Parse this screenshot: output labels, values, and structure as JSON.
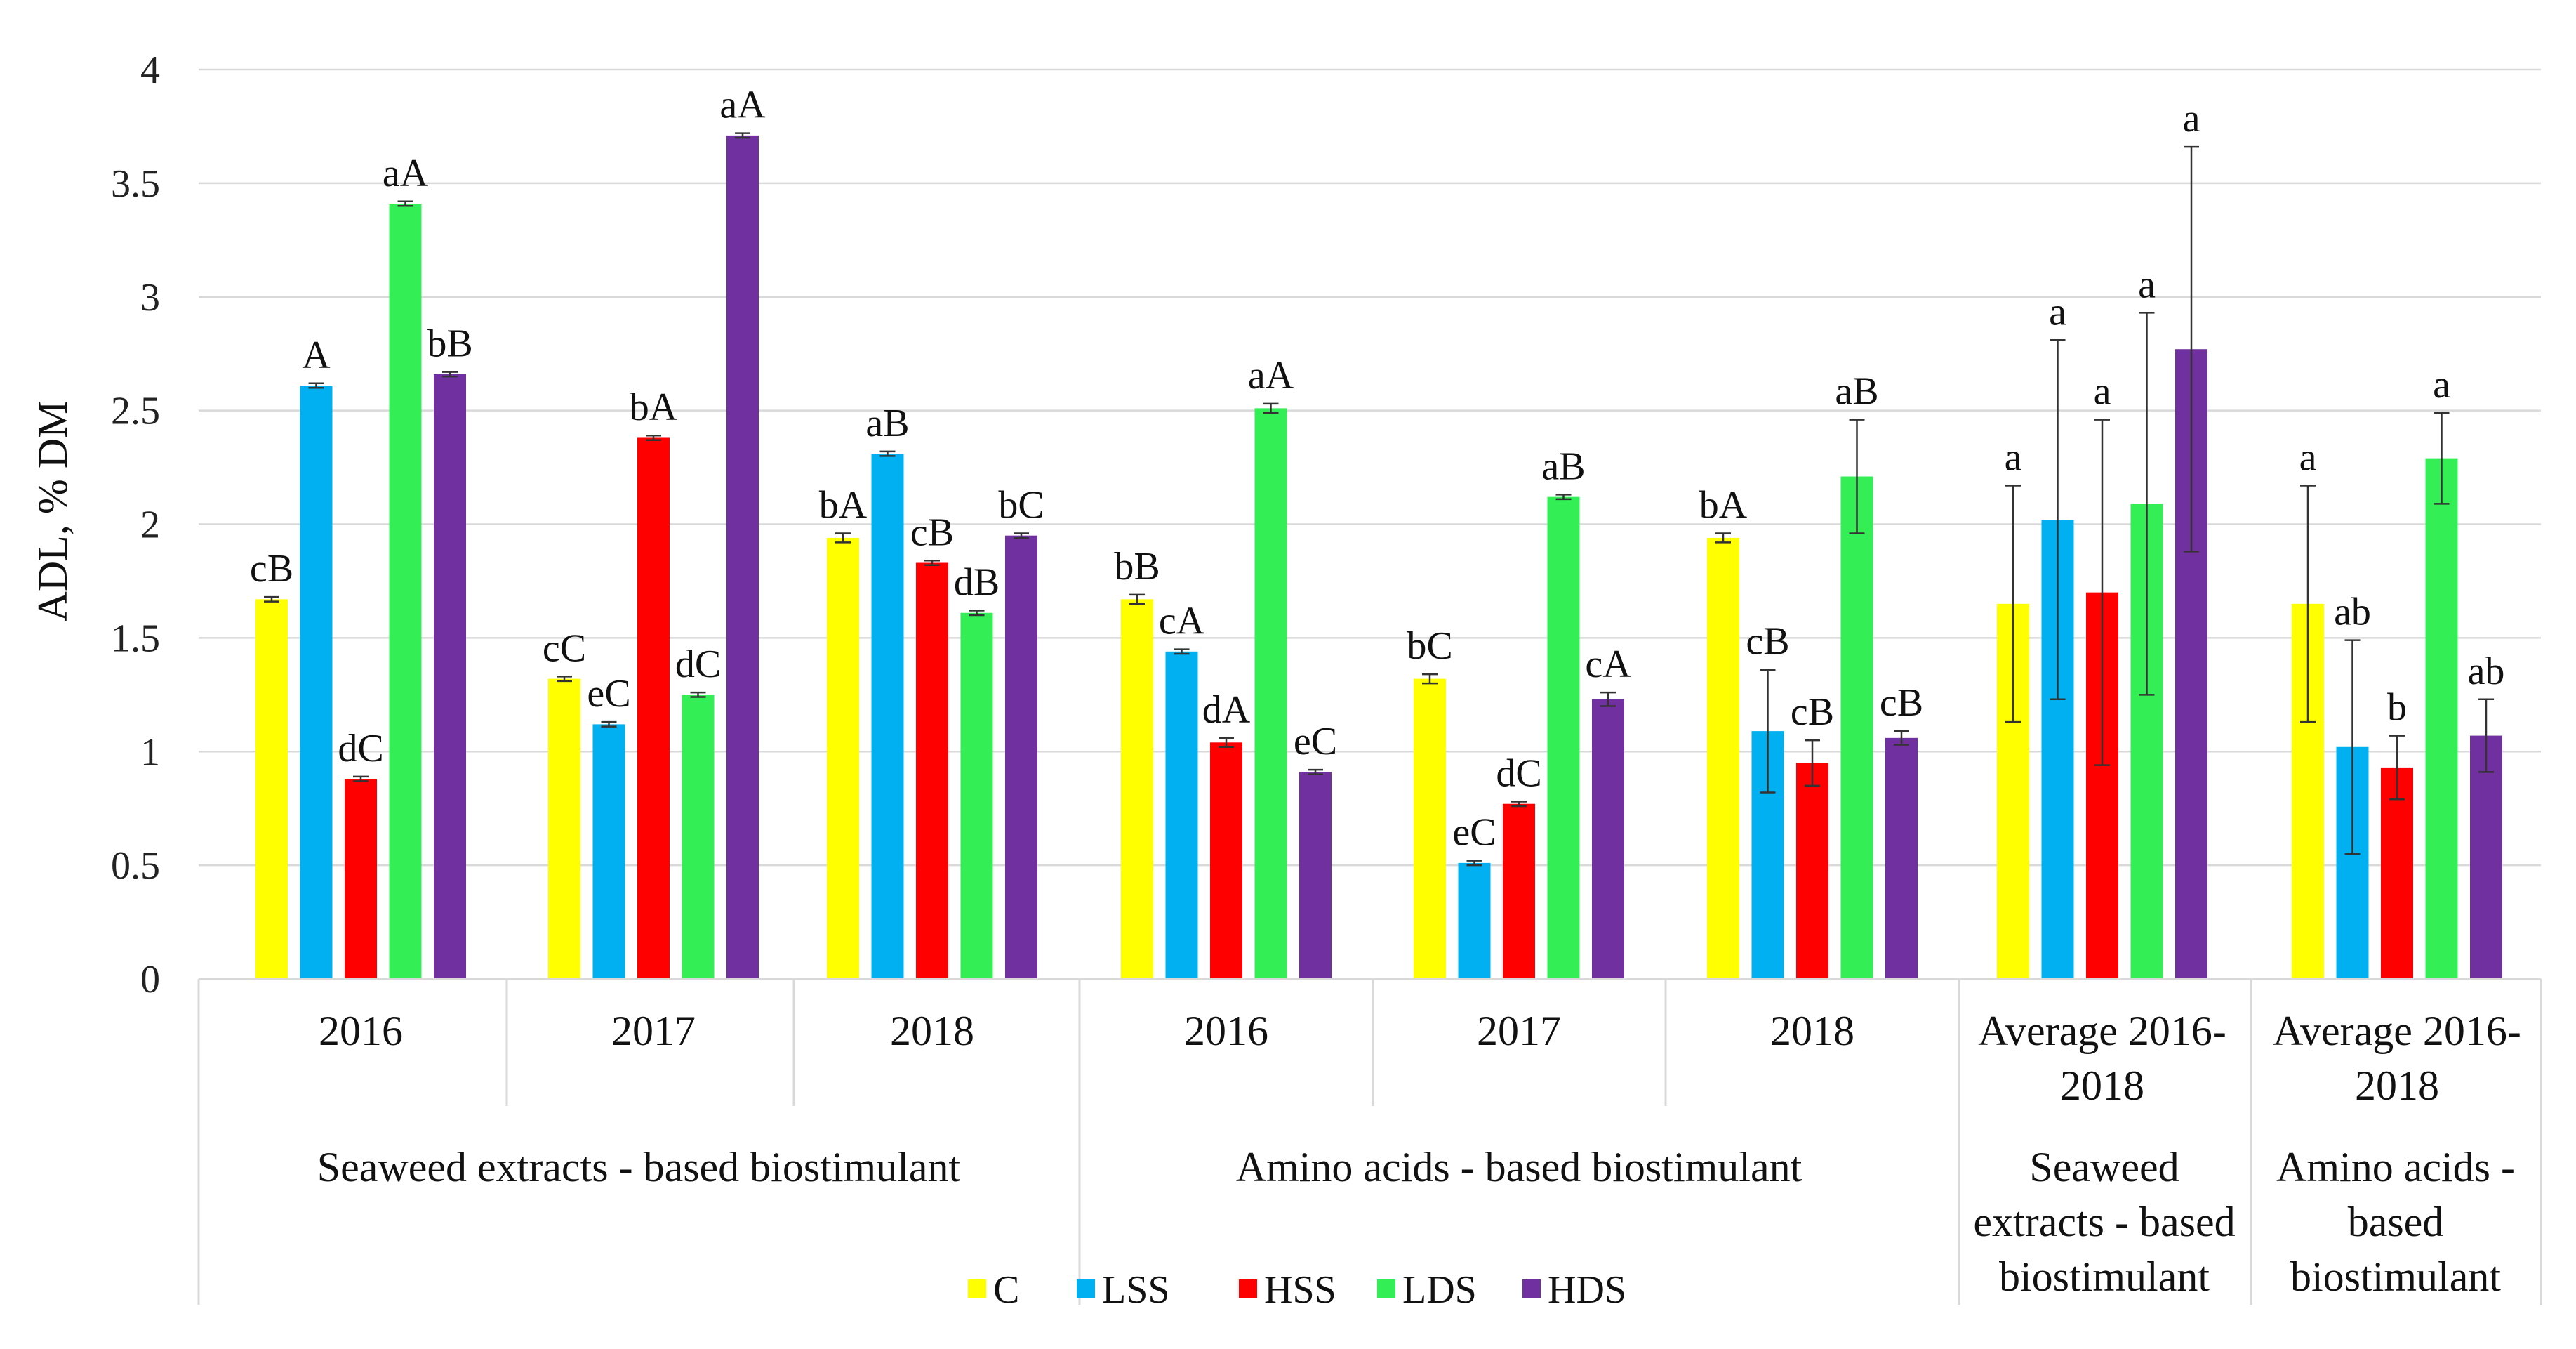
{
  "chart_data": {
    "type": "bar",
    "ylabel": "ADL, % DM",
    "ylim": [
      0,
      4
    ],
    "yticks": [
      0,
      0.5,
      1,
      1.5,
      2,
      2.5,
      3,
      3.5,
      4
    ],
    "ytick_labels": [
      "0",
      "0.5",
      "1",
      "1.5",
      "2",
      "2.5",
      "3",
      "3.5",
      "4"
    ],
    "grid": true,
    "legend_position": "bottom",
    "series_names": [
      "C",
      "LSS",
      "HSS",
      "LDS",
      "HDS"
    ],
    "series_colors": [
      "#FFFF00",
      "#00B0F0",
      "#FF0000",
      "#33EE55",
      "#7030A0"
    ],
    "categories": [
      {
        "label": "2016",
        "group": 0,
        "values": [
          1.67,
          2.61,
          0.88,
          3.41,
          2.66
        ],
        "errors": [
          0.01,
          0.01,
          0.01,
          0.01,
          0.01
        ],
        "labels": [
          "cB",
          "A",
          "dC",
          "aA",
          "bB"
        ]
      },
      {
        "label": "2017",
        "group": 0,
        "values": [
          1.32,
          1.12,
          2.38,
          1.25,
          3.71
        ],
        "errors": [
          0.01,
          0.01,
          0.01,
          0.01,
          0.01
        ],
        "labels": [
          "cC",
          "eC",
          "bA",
          "dC",
          "aA"
        ]
      },
      {
        "label": "2018",
        "group": 0,
        "values": [
          1.94,
          2.31,
          1.83,
          1.61,
          1.95
        ],
        "errors": [
          0.02,
          0.01,
          0.01,
          0.01,
          0.01
        ],
        "labels": [
          "bA",
          "aB",
          "cB",
          "dB",
          "bC"
        ]
      },
      {
        "label": "2016",
        "group": 1,
        "values": [
          1.67,
          1.44,
          1.04,
          2.51,
          0.91
        ],
        "errors": [
          0.02,
          0.01,
          0.02,
          0.02,
          0.01
        ],
        "labels": [
          "bB",
          "cA",
          "dA",
          "aA",
          "eC"
        ]
      },
      {
        "label": "2017",
        "group": 1,
        "values": [
          1.32,
          0.51,
          0.77,
          2.12,
          1.23
        ],
        "errors": [
          0.02,
          0.01,
          0.01,
          0.01,
          0.03
        ],
        "labels": [
          "bC",
          "eC",
          "dC",
          "aB",
          "cA"
        ]
      },
      {
        "label": "2018",
        "group": 1,
        "values": [
          1.94,
          1.09,
          0.95,
          2.21,
          1.06
        ],
        "errors": [
          0.02,
          0.27,
          0.1,
          0.25,
          0.03
        ],
        "labels": [
          "bA",
          "cB",
          "cB",
          "aB",
          "cB"
        ]
      },
      {
        "label_lines": [
          "Average 2016-",
          "2018"
        ],
        "group": 2,
        "values": [
          1.65,
          2.02,
          1.7,
          2.09,
          2.77
        ],
        "errors": [
          0.52,
          0.79,
          0.76,
          0.84,
          0.89
        ],
        "labels": [
          "a",
          "a",
          "a",
          "a",
          "a"
        ]
      },
      {
        "label_lines": [
          "Average 2016-",
          "2018"
        ],
        "group": 3,
        "values": [
          1.65,
          1.02,
          0.93,
          2.29,
          1.07
        ],
        "errors": [
          0.52,
          0.47,
          0.14,
          0.2,
          0.16
        ],
        "labels": [
          "a",
          "ab",
          "b",
          "a",
          "ab"
        ]
      }
    ],
    "groups": [
      {
        "lines": [
          "Seaweed extracts - based biostimulant"
        ]
      },
      {
        "lines": [
          "Amino acids - based biostimulant"
        ]
      },
      {
        "lines": [
          "Seaweed",
          "extracts - based",
          "biostimulant"
        ]
      },
      {
        "lines": [
          "Amino acids -",
          "based",
          "biostimulant"
        ]
      }
    ]
  }
}
